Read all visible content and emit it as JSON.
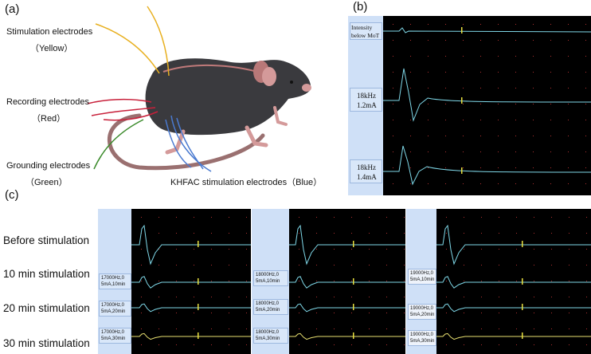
{
  "panel_labels": {
    "a": "(a)",
    "b": "(b)",
    "c": "(c)"
  },
  "electrodes": {
    "stimulation": {
      "name": "Stimulation electrodes",
      "color_name": "（Yellow）",
      "color": "#e8b020"
    },
    "recording": {
      "name": "Recording electrodes",
      "color_name": "（Red）",
      "color": "#c8203a"
    },
    "grounding": {
      "name": "Grounding electrodes",
      "color_name": "（Green）",
      "color": "#3a8a2a"
    },
    "khfac": {
      "name": "KHFAC stimulation electrodes（Blue）",
      "color": "#4a7ad0"
    }
  },
  "panel_b": {
    "rows": [
      {
        "label_line1": "Intensity",
        "label_line2": "below MoT"
      },
      {
        "label_line1": "18kHz",
        "label_line2": "1.2mA"
      },
      {
        "label_line1": "18kHz",
        "label_line2": "1.4mA"
      }
    ]
  },
  "panel_c": {
    "row_labels": [
      "Before stimulation",
      "10 min stimulation",
      "20 min stimulation",
      "30 min stimulation"
    ],
    "columns": [
      {
        "cells": [
          {
            "l1": "17000Hz,0",
            "l2": "5mA,10min"
          },
          {
            "l1": "17000Hz,0",
            "l2": "5mA,20min"
          },
          {
            "l1": "17000Hz,0",
            "l2": "5mA,30min"
          }
        ]
      },
      {
        "cells": [
          {
            "l1": "18000Hz,0",
            "l2": "5mA,10min"
          },
          {
            "l1": "18000Hz,0",
            "l2": "5mA,20min"
          },
          {
            "l1": "18000Hz,0",
            "l2": "5mA,30min"
          }
        ]
      },
      {
        "cells": [
          {
            "l1": "19000Hz,0",
            "l2": "5mA,10min"
          },
          {
            "l1": "19000Hz,0",
            "l2": "5mA,20min"
          },
          {
            "l1": "19000Hz,0",
            "l2": "5mA,30min"
          }
        ]
      }
    ]
  },
  "colors": {
    "trace": "#7fd8e8",
    "trace_yellow": "#e8e070",
    "marker_red": "#ff3030",
    "marker_yellow": "#e8e040",
    "grid_dot": "#b03030"
  }
}
